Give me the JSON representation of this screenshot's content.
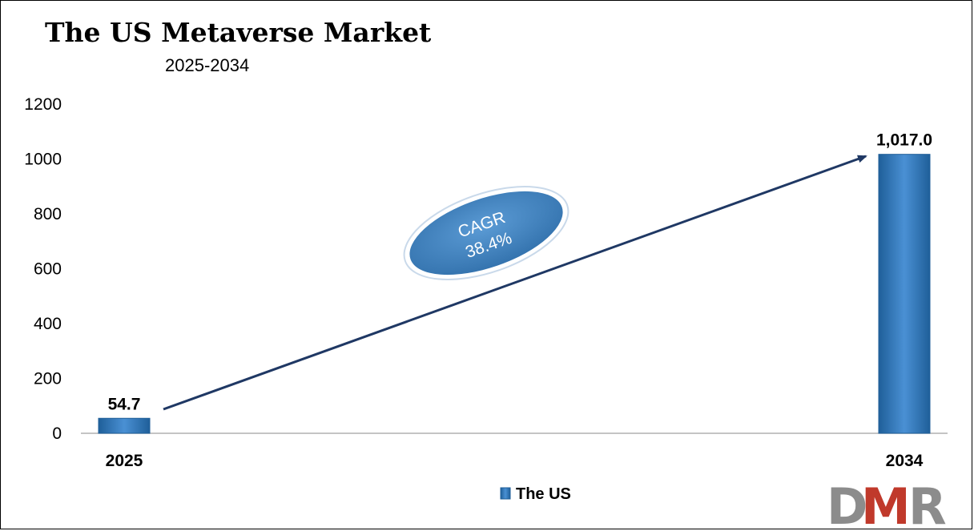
{
  "chart_data": {
    "type": "bar",
    "title": "The US Metaverse Market",
    "subtitle": "2025-2034",
    "categories": [
      "2025",
      "2034"
    ],
    "series": [
      {
        "name": "The US",
        "values": [
          54.7,
          1017.0
        ],
        "labels": [
          "54.7",
          "1,017.0"
        ],
        "color": "#2e75b6"
      }
    ],
    "ylim": [
      0,
      1200
    ],
    "yticks": [
      0,
      200,
      400,
      600,
      800,
      1000,
      1200
    ],
    "grid": false,
    "legend": "bottom-center",
    "annotation": {
      "line1": "CAGR",
      "line2": "38.4%"
    },
    "arrow_color": "#1f3864"
  },
  "logo": {
    "text": "DMR",
    "colors": [
      "#8c8c8c",
      "#c0392b"
    ]
  }
}
